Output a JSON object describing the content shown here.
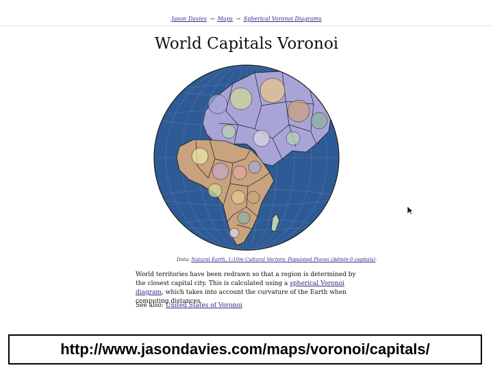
{
  "breadcrumb": {
    "items": [
      {
        "label": "Jason Davies"
      },
      {
        "label": "Maps"
      },
      {
        "label": "Spherical Voronoi Diagrams"
      }
    ],
    "separator": "→"
  },
  "page": {
    "title": "World Capitals Voronoi"
  },
  "map": {
    "ocean_color": "#2e5b96",
    "border_color": "#1a1a1a",
    "region_colors": [
      "#a9a4d8",
      "#cfd89a",
      "#e7c48e",
      "#c9a27e",
      "#8fb0a0",
      "#d9d3e6",
      "#b7d0b5",
      "#e8e4a8",
      "#c7a6c9",
      "#e3a3a0"
    ]
  },
  "caption": {
    "prefix": "Data: ",
    "link": "Natural Earth, 1:10m Cultural Vectors: Populated Places (Admin-0 capitals)",
    "suffix": "."
  },
  "description": {
    "before": "World territories have been redrawn so that a region is determined by the closest capital city. This is calculated using a ",
    "link": "spherical Voronoi diagram",
    "after": ", which takes into account the curvature of the Earth when computing distances."
  },
  "see_also": {
    "label": "See also: ",
    "link": "United States of Voronoi"
  },
  "footer": {
    "url": "http://www.jasondavies.com/maps/voronoi/capitals/"
  }
}
